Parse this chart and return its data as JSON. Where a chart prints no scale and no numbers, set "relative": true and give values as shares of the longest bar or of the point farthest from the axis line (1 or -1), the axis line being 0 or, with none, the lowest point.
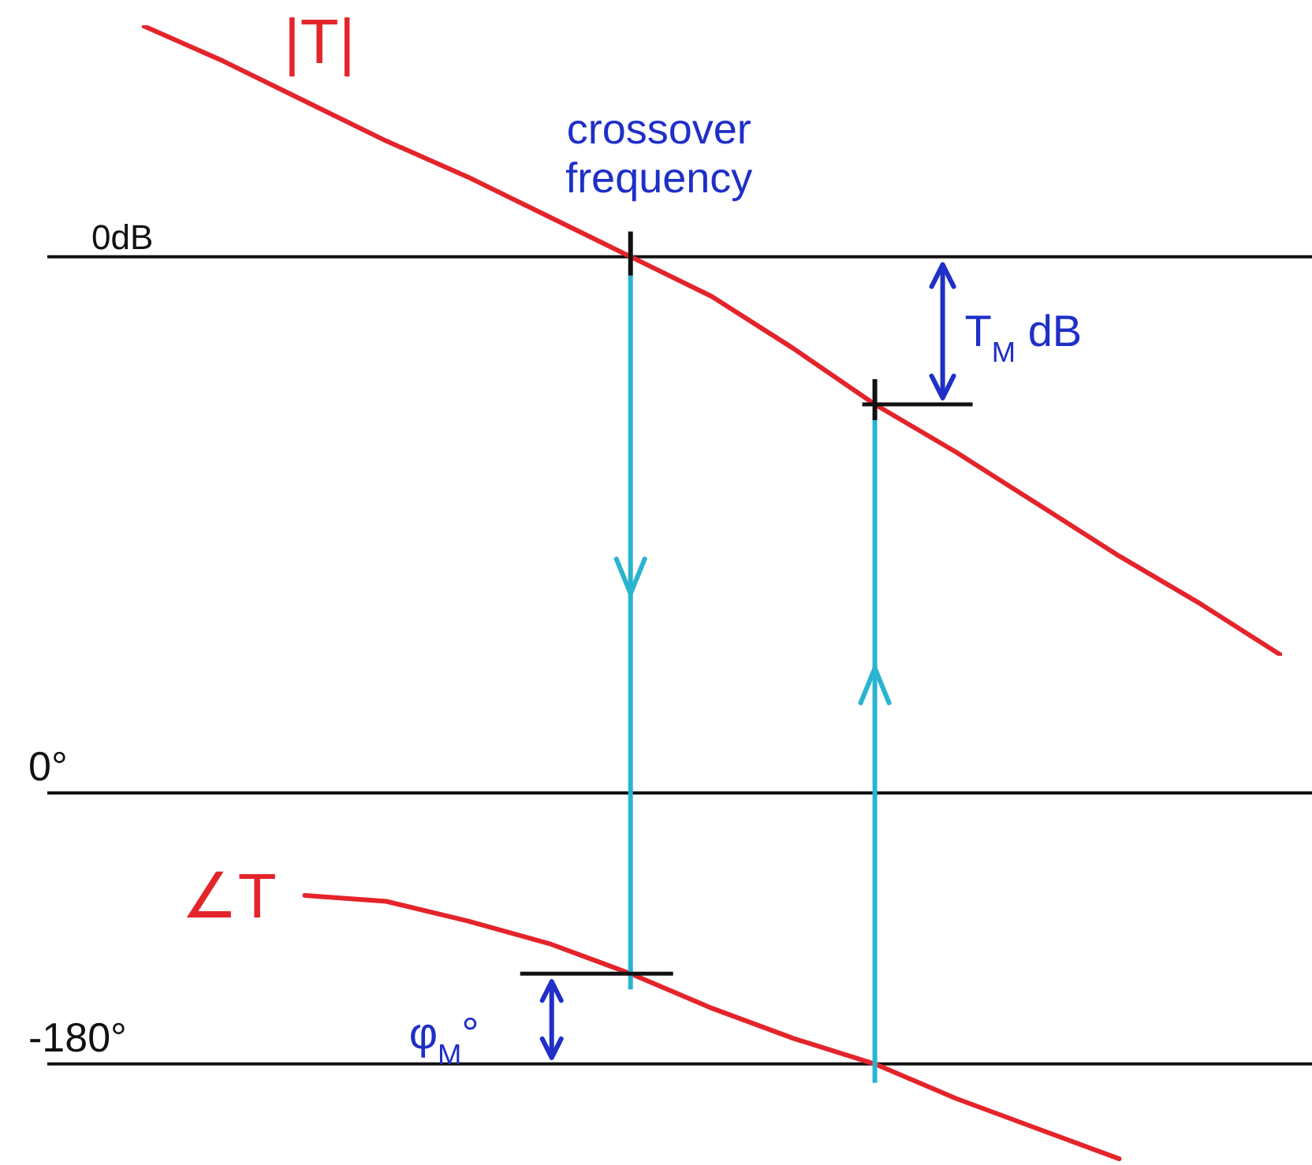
{
  "chart_data": [
    {
      "type": "line",
      "relative": true,
      "categories": [
        null,
        null,
        null,
        null,
        null,
        null,
        null,
        null,
        null,
        null,
        null,
        null,
        null,
        null,
        null
      ],
      "series": [
        {
          "name": "|T|",
          "color": "#e4242b",
          "values": [
            0.58,
            0.49,
            0.39,
            0.29,
            0.2,
            0.1,
            0,
            -0.1,
            -0.23,
            -0.37,
            -0.49,
            -0.62,
            -0.75,
            -0.87,
            -1
          ]
        }
      ],
      "ref_lines": [
        {
          "axis": "y",
          "value": 0,
          "label": "0dB",
          "color": "#111111"
        }
      ],
      "annotations": [
        "crossover frequency",
        "T$_{M}$ dB"
      ],
      "tick_labels": false
    },
    {
      "type": "line",
      "categories": [
        null,
        null,
        null,
        null,
        null,
        null,
        null,
        null,
        null,
        null,
        null,
        null,
        null,
        null,
        null
      ],
      "series": [
        {
          "name": "∠T",
          "color": "#e4242b",
          "values": [
            null,
            null,
            -68,
            -72,
            -85,
            -100,
            -120,
            -143,
            -163,
            -180,
            -203,
            -223,
            -243,
            null,
            null
          ]
        }
      ],
      "ylim": [
        -245,
        0
      ],
      "yticks": [
        {
          "value": 0,
          "label": "0°"
        },
        {
          "value": -180,
          "label": "-180°"
        }
      ],
      "grid": "y",
      "annotations": [
        "φ$_{M}$°"
      ],
      "tick_labels": "y"
    }
  ]
}
